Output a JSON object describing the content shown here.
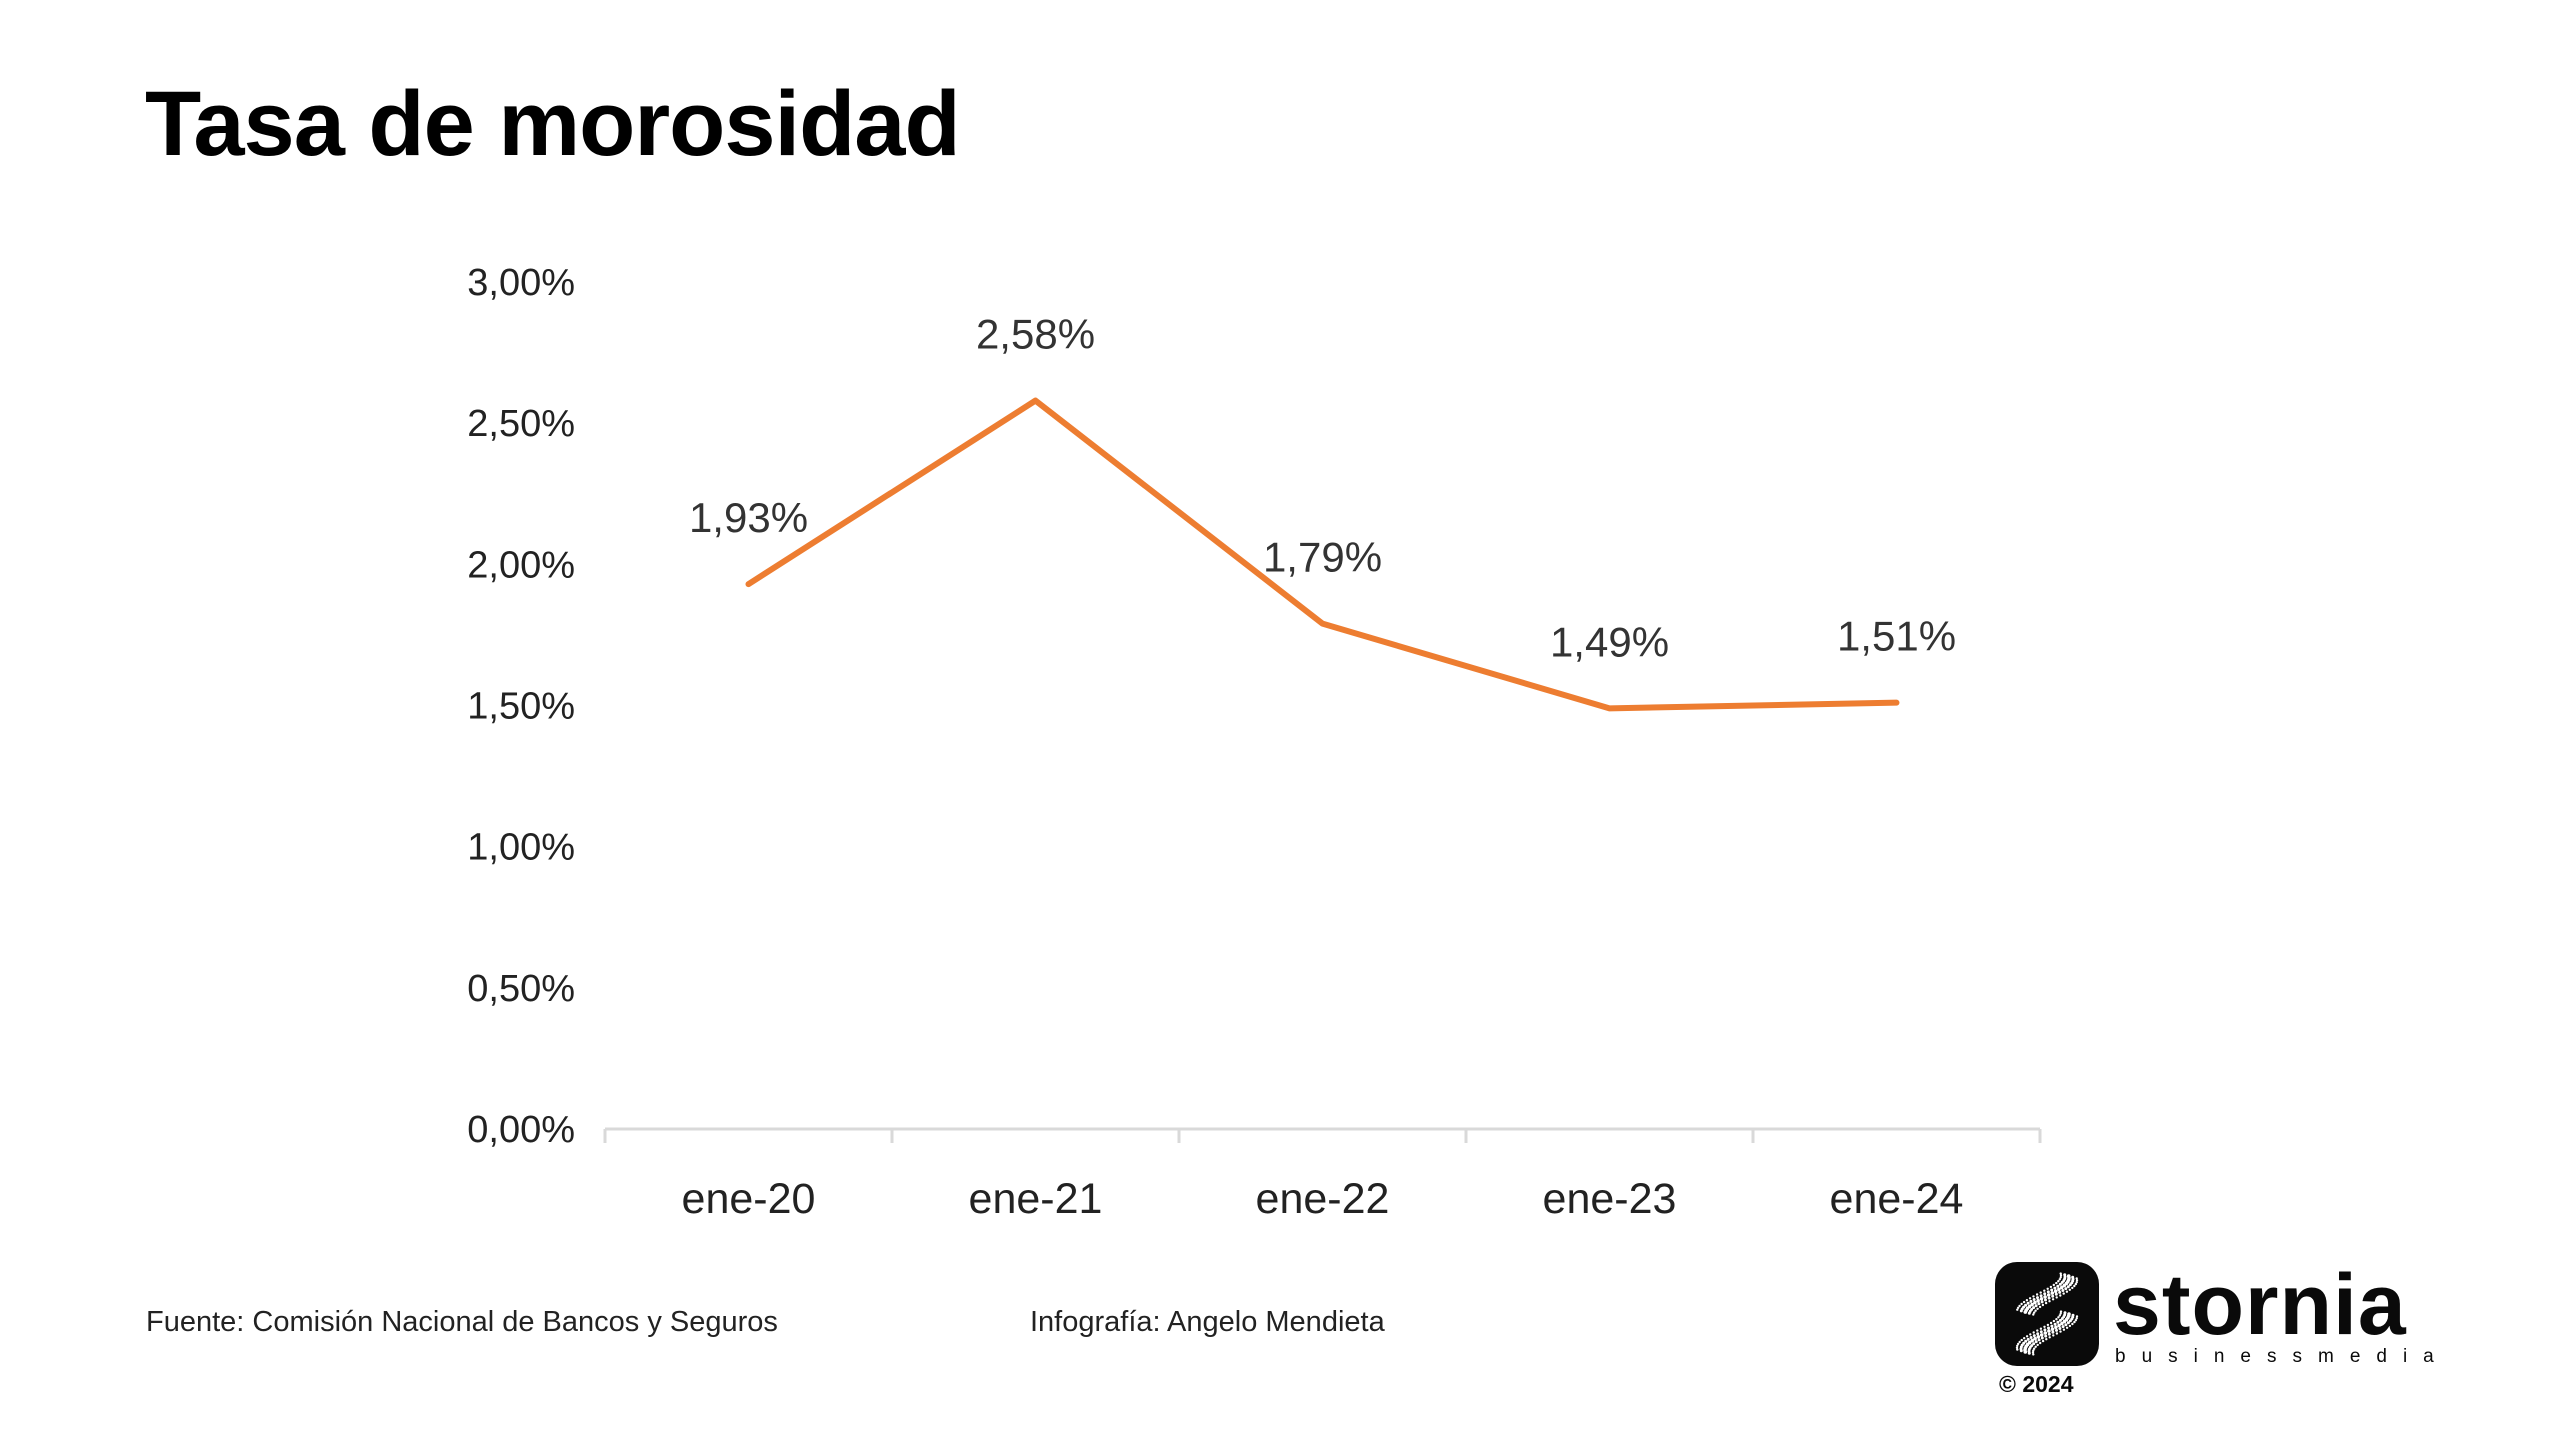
{
  "title": "Tasa de morosidad",
  "chart_data": {
    "type": "line",
    "categories": [
      "ene-20",
      "ene-21",
      "ene-22",
      "ene-23",
      "ene-24"
    ],
    "values": [
      1.93,
      2.58,
      1.79,
      1.49,
      1.51
    ],
    "data_labels": [
      "1,93%",
      "2,58%",
      "1,79%",
      "1,49%",
      "1,51%"
    ],
    "yticks": [
      0,
      0.5,
      1,
      1.5,
      2,
      2.5,
      3
    ],
    "ytick_labels": [
      "0,00%",
      "0,50%",
      "1,00%",
      "1,50%",
      "2,00%",
      "2,50%",
      "3,00%"
    ],
    "ylim": [
      0,
      3
    ],
    "grid": false,
    "line_color": "#ed7d31"
  },
  "footer": {
    "source": "Fuente: Comisión Nacional de Bancos y Seguros",
    "credit": "Infografía: Angelo Mendieta"
  },
  "brand": {
    "name": "stornia",
    "tagline_left": "business",
    "tagline_right": "media",
    "copyright": "© 2024",
    "logo_icon": "stornia-s-dot-icon"
  }
}
